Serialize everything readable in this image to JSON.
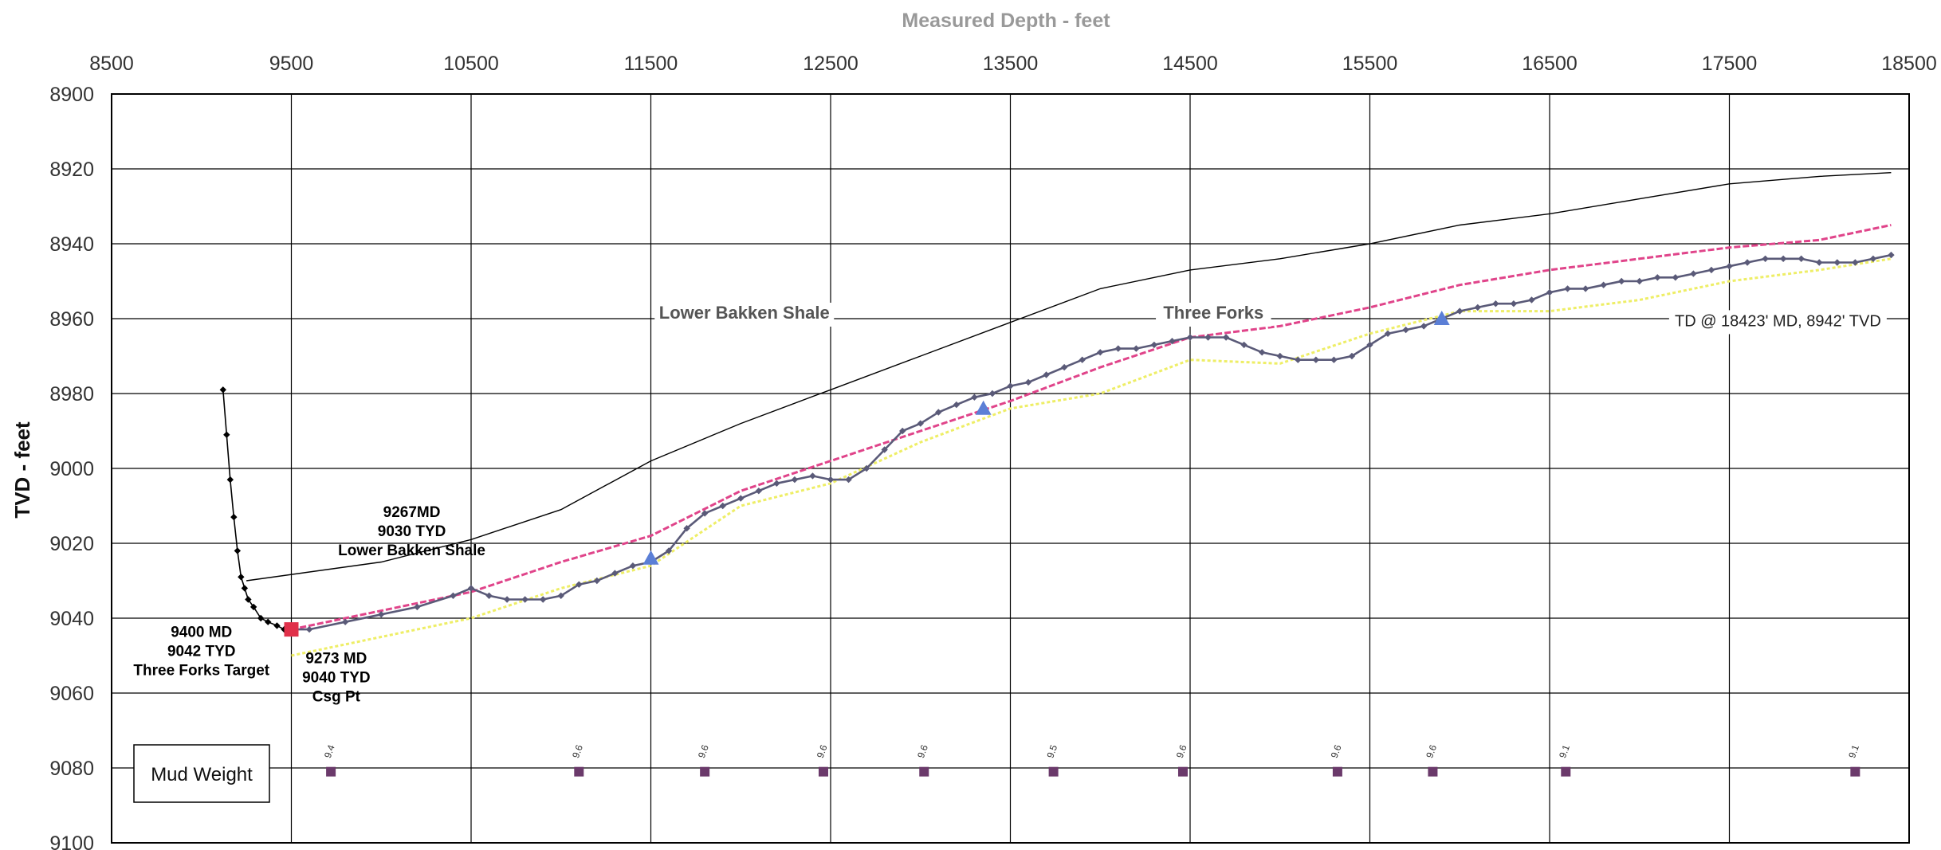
{
  "chart_data": {
    "type": "line",
    "title": "Measured Depth - feet",
    "xlabel": "",
    "ylabel": "TVD - feet",
    "xlim": [
      8500,
      18500
    ],
    "ylim": [
      9100,
      8900
    ],
    "y_inverted": true,
    "x_axis_position": "top",
    "grid": true,
    "x_ticks": [
      "8500",
      "9500",
      "10500",
      "11500",
      "12500",
      "13500",
      "14500",
      "15500",
      "16500",
      "17500",
      "18500"
    ],
    "y_ticks": [
      "8900",
      "8920",
      "8940",
      "8960",
      "8980",
      "9000",
      "9020",
      "9040",
      "9060",
      "9080",
      "9100"
    ],
    "colors": {
      "wellbore": "#5a5a78",
      "curve": "#000000",
      "top_line": "#000000",
      "pink": "#e0448a",
      "yellow": "#eeee66",
      "marker_blue": "#5b7fd6",
      "marker_red": "#e0304a",
      "mud": "#6b3a6b",
      "grid": "#000000"
    },
    "series": [
      {
        "key": "top_line",
        "x": [
          9250,
          10000,
          10500,
          11000,
          11500,
          12000,
          12500,
          13000,
          13500,
          14000,
          14500,
          15000,
          15500,
          16000,
          16500,
          17000,
          17500,
          18000,
          18400
        ],
        "y": [
          9030,
          9025,
          9019,
          9011,
          8998,
          8988,
          8979,
          8970,
          8961,
          8952,
          8947,
          8944,
          8940,
          8935,
          8932,
          8928,
          8924,
          8922,
          8921
        ]
      },
      {
        "key": "pink",
        "x": [
          9500,
          10000,
          10500,
          11000,
          11500,
          12000,
          12500,
          13000,
          13500,
          14000,
          14500,
          15000,
          15500,
          16000,
          16500,
          17000,
          17500,
          18000,
          18400
        ],
        "y": [
          9043,
          9038,
          9033,
          9025,
          9018,
          9006,
          8998,
          8990,
          8982,
          8973,
          8965,
          8962,
          8957,
          8951,
          8947,
          8944,
          8941,
          8939,
          8935
        ]
      },
      {
        "key": "yellow",
        "x": [
          9500,
          10000,
          10500,
          11000,
          11500,
          12000,
          12500,
          13000,
          13500,
          14000,
          14500,
          15000,
          15500,
          16000,
          16500,
          17000,
          17500,
          18000,
          18400
        ],
        "y": [
          9050,
          9045,
          9040,
          9032,
          9026,
          9010,
          9004,
          8993,
          8984,
          8980,
          8971,
          8972,
          8964,
          8958,
          8958,
          8955,
          8950,
          8947,
          8944
        ]
      },
      {
        "key": "curve",
        "x": [
          9120,
          9140,
          9160,
          9180,
          9200,
          9220,
          9240,
          9260,
          9290,
          9330,
          9370,
          9420,
          9460,
          9500
        ],
        "y": [
          8979,
          8991,
          9003,
          9013,
          9022,
          9029,
          9032,
          9035,
          9037,
          9040,
          9041,
          9042,
          9043,
          9043
        ]
      },
      {
        "key": "wellbore",
        "x": [
          9500,
          9600,
          9800,
          10000,
          10200,
          10400,
          10500,
          10600,
          10700,
          10800,
          10900,
          11000,
          11100,
          11200,
          11300,
          11400,
          11500,
          11600,
          11700,
          11800,
          11900,
          12000,
          12100,
          12200,
          12300,
          12400,
          12500,
          12600,
          12700,
          12800,
          12900,
          13000,
          13100,
          13200,
          13300,
          13400,
          13500,
          13600,
          13700,
          13800,
          13900,
          14000,
          14100,
          14200,
          14300,
          14400,
          14500,
          14600,
          14700,
          14800,
          14900,
          15000,
          15100,
          15200,
          15300,
          15400,
          15500,
          15600,
          15700,
          15800,
          15900,
          16000,
          16100,
          16200,
          16300,
          16400,
          16500,
          16600,
          16700,
          16800,
          16900,
          17000,
          17100,
          17200,
          17300,
          17400,
          17500,
          17600,
          17700,
          17800,
          17900,
          18000,
          18100,
          18200,
          18300,
          18400
        ],
        "y": [
          9043,
          9043,
          9041,
          9039,
          9037,
          9034,
          9032,
          9034,
          9035,
          9035,
          9035,
          9034,
          9031,
          9030,
          9028,
          9026,
          9025,
          9022,
          9016,
          9012,
          9010,
          9008,
          9006,
          9004,
          9003,
          9002,
          9003,
          9003,
          9000,
          8995,
          8990,
          8988,
          8985,
          8983,
          8981,
          8980,
          8978,
          8977,
          8975,
          8973,
          8971,
          8969,
          8968,
          8968,
          8967,
          8966,
          8965,
          8965,
          8965,
          8967,
          8969,
          8970,
          8971,
          8971,
          8971,
          8970,
          8967,
          8964,
          8963,
          8962,
          8960,
          8958,
          8957,
          8956,
          8956,
          8955,
          8953,
          8952,
          8952,
          8951,
          8950,
          8950,
          8949,
          8949,
          8948,
          8947,
          8946,
          8945,
          8944,
          8944,
          8944,
          8945,
          8945,
          8945,
          8944,
          8943
        ]
      }
    ],
    "markers": [
      {
        "type": "square",
        "color": "marker_red",
        "x": 9500,
        "y": 9043
      },
      {
        "type": "triangle",
        "color": "marker_blue",
        "x": 11500,
        "y": 9024
      },
      {
        "type": "triangle",
        "color": "marker_blue",
        "x": 13350,
        "y": 8984
      },
      {
        "type": "triangle",
        "color": "marker_blue",
        "x": 15900,
        "y": 8960
      }
    ],
    "mud_weight": {
      "label": "Mud Weight",
      "y": 9081,
      "points": [
        {
          "x": 9720,
          "value": "9.4"
        },
        {
          "x": 11100,
          "value": "9.6"
        },
        {
          "x": 11800,
          "value": "9.6"
        },
        {
          "x": 12460,
          "value": "9.6"
        },
        {
          "x": 13020,
          "value": "9.6"
        },
        {
          "x": 13740,
          "value": "9.5"
        },
        {
          "x": 14460,
          "value": "9.6"
        },
        {
          "x": 15320,
          "value": "9.6"
        },
        {
          "x": 15850,
          "value": "9.6"
        },
        {
          "x": 16590,
          "value": "9.1"
        },
        {
          "x": 18200,
          "value": "9.1"
        }
      ]
    },
    "annotations": [
      {
        "lines": [
          "9267MD",
          "9030 TYD",
          "Lower Bakken Shale"
        ],
        "x": 10170,
        "y": 9013,
        "cls": "ann"
      },
      {
        "lines": [
          "9400 MD",
          "9042 TYD",
          "Three Forks Target"
        ],
        "x": 9000,
        "y": 9045,
        "cls": "ann"
      },
      {
        "lines": [
          "9273 MD",
          "9040 TYD",
          "Csg Pt"
        ],
        "x": 9750,
        "y": 9052,
        "cls": "ann"
      },
      {
        "lines": [
          "Lower Bakken Shale"
        ],
        "x": 12020,
        "y": 8960,
        "cls": "zone"
      },
      {
        "lines": [
          "Three Forks"
        ],
        "x": 14630,
        "y": 8960,
        "cls": "zone"
      },
      {
        "lines": [
          "TD @ 18423' MD, 8942' TVD"
        ],
        "x": 17770,
        "y": 8962,
        "cls": "td"
      }
    ]
  }
}
